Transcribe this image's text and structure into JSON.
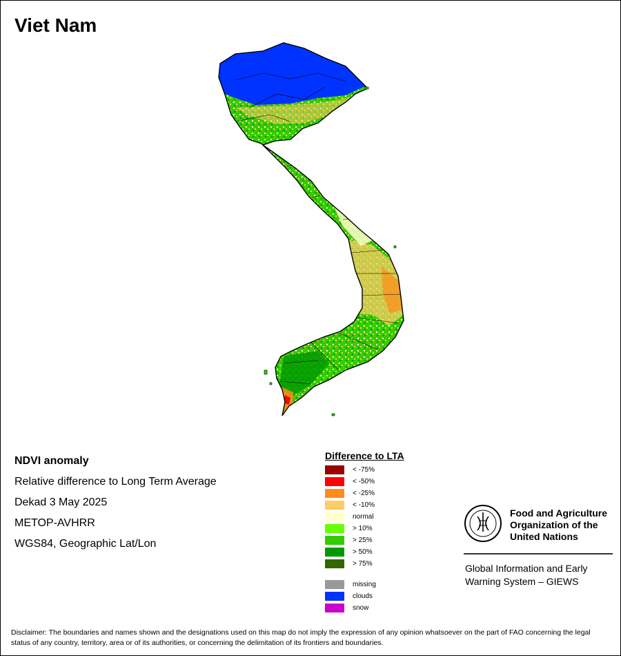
{
  "title": "Viet Nam",
  "info": {
    "heading": "NDVI anomaly",
    "line1": "Relative difference to Long Term Average",
    "line2": "Dekad 3 May 2025",
    "line3": "METOP-AVHRR",
    "line4": "WGS84, Geographic Lat/Lon"
  },
  "legend": {
    "title": "Difference to LTA",
    "classes": [
      {
        "label": "< -75%",
        "color": "#990000"
      },
      {
        "label": "< -50%",
        "color": "#ff0000"
      },
      {
        "label": "< -25%",
        "color": "#ff8c1a"
      },
      {
        "label": "< -10%",
        "color": "#ffcc66"
      },
      {
        "label": "normal",
        "color": "#ffffcc"
      },
      {
        "label": "> 10%",
        "color": "#66ff00"
      },
      {
        "label": "> 25%",
        "color": "#33cc00"
      },
      {
        "label": "> 50%",
        "color": "#009900"
      },
      {
        "label": "> 75%",
        "color": "#336600"
      }
    ],
    "other": [
      {
        "label": "missing",
        "color": "#999999"
      },
      {
        "label": "clouds",
        "color": "#0033ff"
      },
      {
        "label": "snow",
        "color": "#cc00cc"
      }
    ]
  },
  "org": {
    "name_line1": "Food and Agriculture",
    "name_line2": "Organization of the",
    "name_line3": "United Nations",
    "system_line1": "Global Information and Early",
    "system_line2": "Warning System – GIEWS"
  },
  "disclaimer": "Disclaimer: The boundaries and names shown and the designations used on this map do not imply the expression of any opinion whatsoever on the part of FAO concerning the legal status of any country, territory, area or of its authorities, or concerning the delimitation of its frontiers and boundaries."
}
